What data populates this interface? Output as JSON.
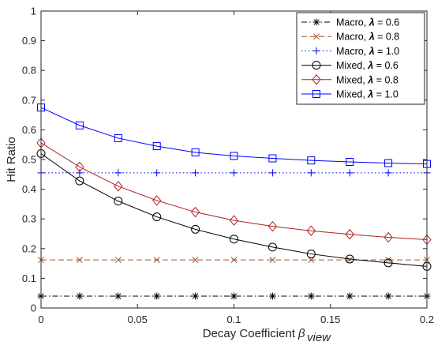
{
  "chart_data": {
    "type": "line",
    "xlabel": "Decay Coefficient",
    "xlabel_symbol": "β",
    "xlabel_subscript": "view",
    "ylabel": "Hit Ratio",
    "xlim": [
      0,
      0.2
    ],
    "ylim": [
      0,
      1
    ],
    "xticks": [
      0,
      0.05,
      0.1,
      0.15,
      0.2
    ],
    "xtick_labels": [
      "0",
      "0.05",
      "0.1",
      "0.15",
      "0.2"
    ],
    "yticks": [
      0,
      0.1,
      0.2,
      0.3,
      0.4,
      0.5,
      0.6,
      0.7,
      0.8,
      0.9,
      1
    ],
    "ytick_labels": [
      "0",
      "0.1",
      "0.2",
      "0.3",
      "0.4",
      "0.5",
      "0.6",
      "0.7",
      "0.8",
      "0.9",
      "1"
    ],
    "grid": false,
    "legend_position": "top-right",
    "x": [
      0,
      0.02,
      0.04,
      0.06,
      0.08,
      0.1,
      0.12,
      0.14,
      0.16,
      0.18,
      0.2
    ],
    "series": [
      {
        "label_prefix": "Macro, ",
        "label_symbol": "λ",
        "label_suffix": " = 0.6",
        "color": "#000000",
        "line_style": "dashdot",
        "marker": "asterisk",
        "values": [
          0.04,
          0.04,
          0.04,
          0.04,
          0.04,
          0.04,
          0.04,
          0.04,
          0.04,
          0.04,
          0.04
        ]
      },
      {
        "label_prefix": "Macro, ",
        "label_symbol": "λ",
        "label_suffix": " = 0.8",
        "color": "#a0522d",
        "line_style": "dashed",
        "marker": "x",
        "values": [
          0.162,
          0.162,
          0.162,
          0.162,
          0.162,
          0.162,
          0.162,
          0.162,
          0.162,
          0.162,
          0.162
        ]
      },
      {
        "label_prefix": "Macro, ",
        "label_symbol": "λ",
        "label_suffix": " = 1.0",
        "color": "#0000ff",
        "line_style": "dotted",
        "marker": "plus",
        "values": [
          0.455,
          0.455,
          0.455,
          0.455,
          0.455,
          0.455,
          0.455,
          0.455,
          0.455,
          0.455,
          0.455
        ]
      },
      {
        "label_prefix": "Mixed, ",
        "label_symbol": "λ",
        "label_suffix": " = 0.6",
        "color": "#000000",
        "line_style": "solid",
        "marker": "circle",
        "values": [
          0.52,
          0.428,
          0.36,
          0.307,
          0.265,
          0.232,
          0.205,
          0.182,
          0.165,
          0.152,
          0.14
        ]
      },
      {
        "label_prefix": "Mixed, ",
        "label_symbol": "λ",
        "label_suffix": " = 0.8",
        "color": "#b22222",
        "line_style": "solid",
        "marker": "diamond",
        "values": [
          0.556,
          0.475,
          0.41,
          0.362,
          0.323,
          0.295,
          0.275,
          0.26,
          0.248,
          0.238,
          0.23
        ]
      },
      {
        "label_prefix": "Mixed, ",
        "label_symbol": "λ",
        "label_suffix": " = 1.0",
        "color": "#0000ff",
        "line_style": "solid",
        "marker": "square",
        "values": [
          0.675,
          0.615,
          0.572,
          0.545,
          0.524,
          0.512,
          0.504,
          0.497,
          0.492,
          0.488,
          0.485
        ]
      }
    ]
  }
}
